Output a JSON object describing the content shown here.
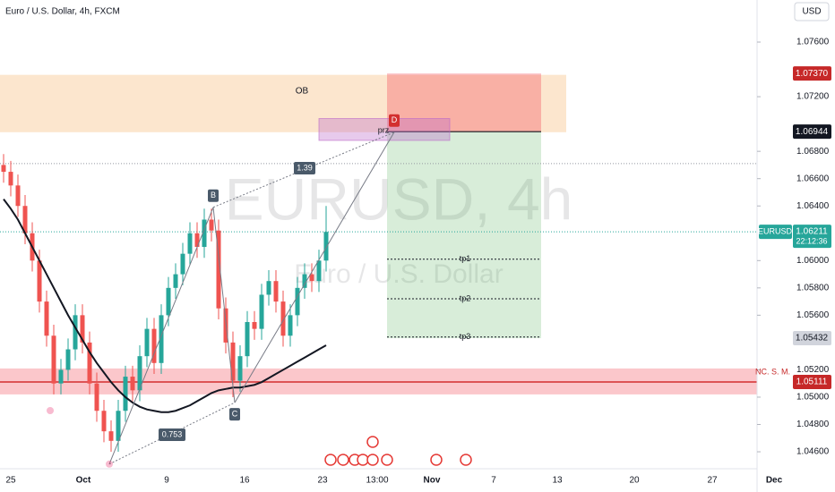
{
  "header": {
    "symbol_title": "Euro / U.S. Dollar, 4h, FXCM",
    "currency": "USD"
  },
  "chart_data": {
    "type": "candlestick",
    "watermark": "EURUSD, 4h",
    "watermark_sub": "Euro / U.S. Dollar",
    "xlabels": [
      "25",
      "Oct",
      "9",
      "16",
      "23",
      "13:00",
      "Nov",
      "7",
      "13",
      "20",
      "27",
      "Dec"
    ],
    "ylim": [
      1.04502,
      1.07908
    ],
    "yticks": [
      {
        "value": 1.076,
        "label": "1.07600"
      },
      {
        "value": 1.072,
        "label": "1.07200"
      },
      {
        "value": 1.068,
        "label": "1.06800"
      },
      {
        "value": 1.066,
        "label": "1.06600"
      },
      {
        "value": 1.064,
        "label": "1.06400"
      },
      {
        "value": 1.06,
        "label": "1.06000"
      },
      {
        "value": 1.058,
        "label": "1.05800"
      },
      {
        "value": 1.056,
        "label": "1.05600"
      },
      {
        "value": 1.052,
        "label": "1.05200"
      },
      {
        "value": 1.05,
        "label": "1.05000"
      },
      {
        "value": 1.048,
        "label": "1.04800"
      },
      {
        "value": 1.046,
        "label": "1.04600"
      }
    ],
    "open": [
      1.067,
      1.0665,
      1.0655,
      1.064,
      1.062,
      1.06,
      1.057,
      1.0545,
      1.051,
      1.052,
      1.0535,
      1.056,
      1.054,
      1.051,
      1.049,
      1.0475,
      1.0468,
      1.049,
      1.0515,
      1.0505,
      1.053,
      1.055,
      1.0525,
      1.056,
      1.058,
      1.059,
      1.0605,
      1.062,
      1.061,
      1.063,
      1.0622,
      1.0565,
      1.054,
      1.0512,
      1.053,
      1.0555,
      1.055,
      1.0575,
      1.0585,
      1.057,
      1.0545,
      1.056,
      1.058,
      1.059,
      1.0585,
      1.06
    ],
    "high": [
      1.0678,
      1.0673,
      1.0663,
      1.0648,
      1.0628,
      1.0608,
      1.0578,
      1.0553,
      1.0528,
      1.0543,
      1.0568,
      1.0568,
      1.0548,
      1.0518,
      1.0498,
      1.0483,
      1.0498,
      1.0523,
      1.0523,
      1.0538,
      1.0558,
      1.0558,
      1.0568,
      1.0588,
      1.0598,
      1.0613,
      1.0628,
      1.0628,
      1.0638,
      1.0638,
      1.063,
      1.0573,
      1.0548,
      1.0538,
      1.0563,
      1.0563,
      1.0583,
      1.0593,
      1.0593,
      1.0578,
      1.0568,
      1.0588,
      1.0598,
      1.0598,
      1.0608,
      1.064
    ],
    "low": [
      1.0657,
      1.0647,
      1.0632,
      1.0612,
      1.0592,
      1.0562,
      1.0537,
      1.0502,
      1.0502,
      1.0512,
      1.0527,
      1.0532,
      1.0502,
      1.0482,
      1.0467,
      1.046,
      1.046,
      1.0482,
      1.0497,
      1.0497,
      1.0522,
      1.0517,
      1.0517,
      1.0552,
      1.0572,
      1.0582,
      1.0597,
      1.0602,
      1.0602,
      1.0614,
      1.0557,
      1.0532,
      1.05,
      1.0504,
      1.0522,
      1.0542,
      1.0542,
      1.0567,
      1.0562,
      1.0537,
      1.0537,
      1.0552,
      1.0572,
      1.0577,
      1.0577,
      1.0592
    ],
    "close": [
      1.0665,
      1.0655,
      1.064,
      1.062,
      1.06,
      1.057,
      1.0545,
      1.051,
      1.052,
      1.0535,
      1.056,
      1.054,
      1.051,
      1.049,
      1.0475,
      1.0468,
      1.049,
      1.0515,
      1.0505,
      1.053,
      1.055,
      1.0525,
      1.056,
      1.058,
      1.059,
      1.0605,
      1.062,
      1.061,
      1.063,
      1.0622,
      1.0565,
      1.054,
      1.0512,
      1.053,
      1.0555,
      1.055,
      1.0575,
      1.0585,
      1.057,
      1.0545,
      1.056,
      1.058,
      1.059,
      1.0585,
      1.06,
      1.0621
    ],
    "up_color": "#26a69a",
    "down_color": "#ef5350",
    "ma_values": [
      1.0645,
      1.0638,
      1.063,
      1.062,
      1.061,
      1.06,
      1.059,
      1.058,
      1.057,
      1.056,
      1.0551,
      1.0542,
      1.0533,
      1.0525,
      1.0518,
      1.0511,
      1.0505,
      1.05,
      1.0496,
      1.0493,
      1.0491,
      1.049,
      1.0489,
      1.0489,
      1.049,
      1.0492,
      1.0494,
      1.0497,
      1.05,
      1.0503,
      1.0505,
      1.0506,
      1.0507,
      1.0507,
      1.0508,
      1.0509,
      1.0511,
      1.0514,
      1.0517,
      1.052,
      1.0523,
      1.0526,
      1.0529,
      1.0532,
      1.0535,
      1.0538
    ],
    "ma_color": "#131722",
    "zones": {
      "ob": {
        "label": "OB",
        "top": 1.0736,
        "bottom": 1.0694
      },
      "prz": {
        "label": "prz",
        "top": 1.0704,
        "bottom": 1.0688
      },
      "support": {
        "top": 1.0521,
        "bottom": 1.0502
      }
    },
    "targets": [
      {
        "label": "tp1",
        "value": 1.0601
      },
      {
        "label": "tp2",
        "value": 1.0572
      },
      {
        "label": "tp3",
        "value": 1.0544
      }
    ],
    "pattern": {
      "points": [
        {
          "value": 1.0451
        },
        {
          "label": "B",
          "value": 1.0639
        },
        {
          "label": "C",
          "value": 1.0496
        },
        {
          "label": "D",
          "value": 1.0694
        }
      ],
      "ratios": [
        "1.39",
        "0.753"
      ]
    },
    "guide_level": 1.0671,
    "price_labels": [
      {
        "value": 1.0737,
        "label": "1.07370"
      },
      {
        "value": 1.06944,
        "label": "1.06944"
      },
      {
        "value": 1.06211,
        "label": "1.06211"
      },
      {
        "value": 1.05432,
        "label": "1.05432"
      },
      {
        "value": 1.05111,
        "label": "1.05111"
      }
    ],
    "symbol_tag": "EURUSD",
    "countdown": "22:12:36",
    "support_tag": "NC. S. M."
  }
}
